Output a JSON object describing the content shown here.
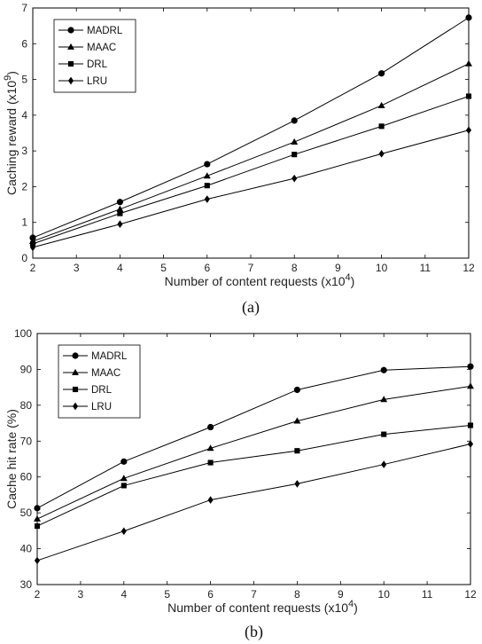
{
  "chart_data": [
    {
      "type": "line",
      "caption": "(a)",
      "xlabel": "Number of content requests (x10",
      "xlabel_exp": "4",
      "xlabel_tail": ")",
      "ylabel": "Caching reward (x10",
      "ylabel_exp": "9",
      "ylabel_tail": ")",
      "x": [
        2,
        4,
        6,
        8,
        10,
        12
      ],
      "xlim": [
        2,
        12
      ],
      "ylim": [
        0,
        7
      ],
      "xticks": [
        "2",
        "3",
        "4",
        "5",
        "6",
        "7",
        "8",
        "9",
        "10",
        "11",
        "12"
      ],
      "yticks": [
        "0",
        "1",
        "2",
        "3",
        "4",
        "5",
        "6",
        "7"
      ],
      "legend_position": "top-left",
      "series": [
        {
          "name": "MADRL",
          "marker": "circle",
          "values": [
            0.57,
            1.57,
            2.63,
            3.85,
            5.17,
            6.73
          ]
        },
        {
          "name": "MAAC",
          "marker": "triangle",
          "values": [
            0.47,
            1.37,
            2.3,
            3.25,
            4.27,
            5.44
          ]
        },
        {
          "name": "DRL",
          "marker": "square",
          "values": [
            0.4,
            1.25,
            2.03,
            2.9,
            3.69,
            4.53
          ]
        },
        {
          "name": "LRU",
          "marker": "diamond",
          "values": [
            0.3,
            0.95,
            1.65,
            2.23,
            2.92,
            3.58
          ]
        }
      ]
    },
    {
      "type": "line",
      "caption": "(b)",
      "xlabel": "Number of content requests (x10",
      "xlabel_exp": "4",
      "xlabel_tail": ")",
      "ylabel": "Cache hit rate (%)",
      "ylabel_exp": "",
      "ylabel_tail": "",
      "x": [
        2,
        4,
        6,
        8,
        10,
        12
      ],
      "xlim": [
        2,
        12
      ],
      "ylim": [
        30,
        100
      ],
      "xticks": [
        "2",
        "3",
        "4",
        "5",
        "6",
        "7",
        "8",
        "9",
        "10",
        "11",
        "12"
      ],
      "yticks": [
        "30",
        "40",
        "50",
        "60",
        "70",
        "80",
        "90",
        "100"
      ],
      "legend_position": "top-left",
      "series": [
        {
          "name": "MADRL",
          "marker": "circle",
          "values": [
            51.3,
            64.3,
            73.9,
            84.3,
            89.8,
            90.8
          ]
        },
        {
          "name": "MAAC",
          "marker": "triangle",
          "values": [
            48.3,
            59.6,
            68.0,
            75.6,
            81.6,
            85.3
          ]
        },
        {
          "name": "DRL",
          "marker": "square",
          "values": [
            46.3,
            57.6,
            64.0,
            67.3,
            71.9,
            74.4
          ]
        },
        {
          "name": "LRU",
          "marker": "diamond",
          "values": [
            36.7,
            44.9,
            53.6,
            58.1,
            63.5,
            69.2
          ]
        }
      ]
    }
  ]
}
